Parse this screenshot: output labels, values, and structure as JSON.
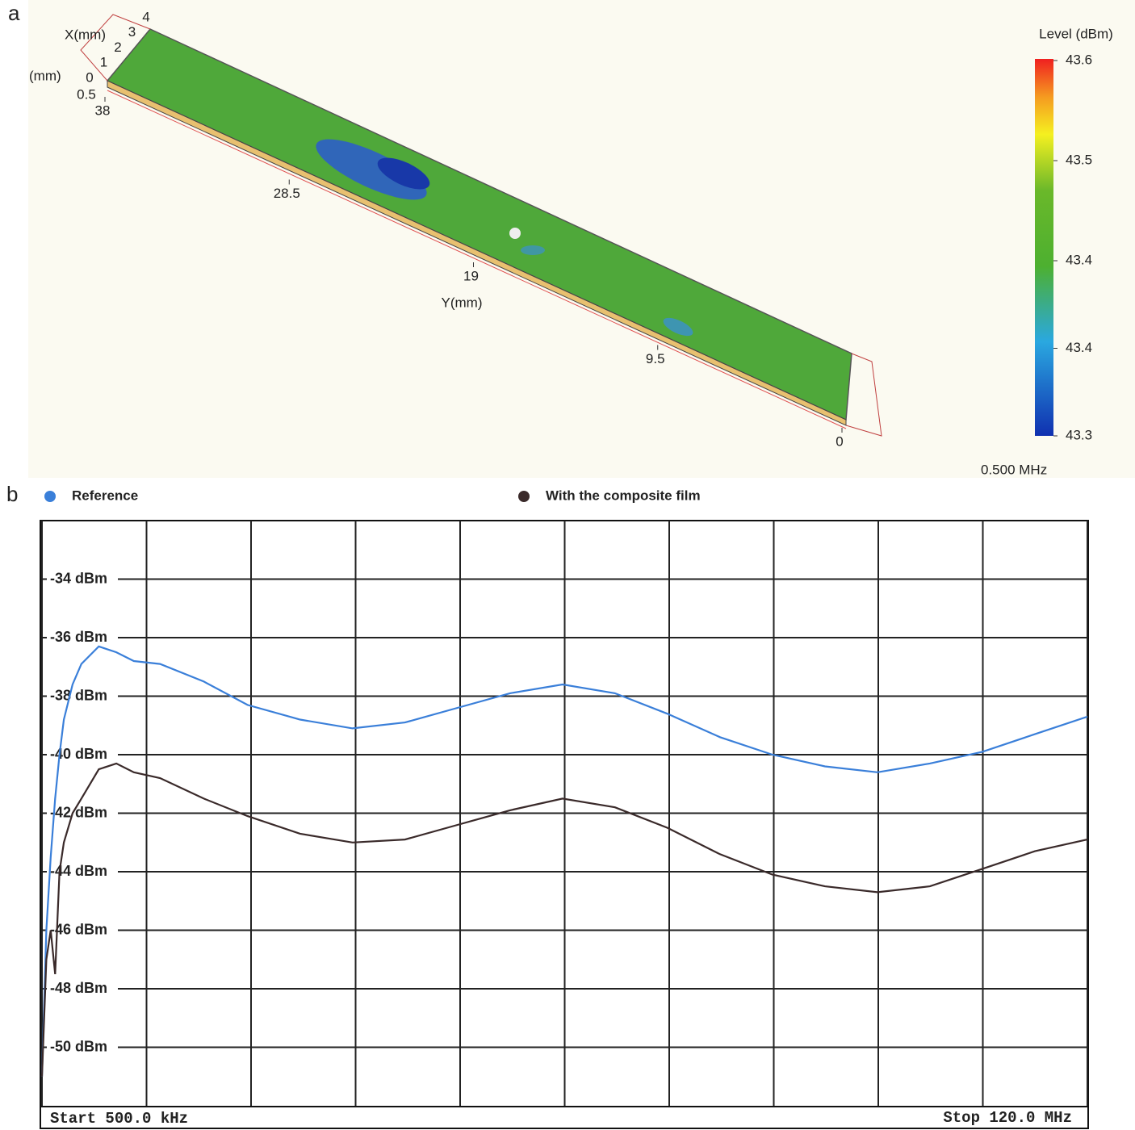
{
  "chart_data": [
    {
      "type": "surface3d",
      "panel_label": "a",
      "x_label": "X(mm)",
      "z_label": "(mm)",
      "y_label": "Y(mm)",
      "xticks": [
        4,
        3,
        2,
        1,
        0
      ],
      "xlim": [
        0,
        4
      ],
      "zticks": [
        0.5
      ],
      "yticks": [
        38,
        28.5,
        19,
        9.5,
        0
      ],
      "ylim": [
        0,
        38
      ],
      "colorbar_label": "Level (dBm)",
      "colorbar_lim": [
        43.3,
        43.6
      ],
      "colorbar_ticks": [
        43.6,
        {
          "value": 43.52,
          "label": "43.5"
        },
        {
          "value": 43.44,
          "label": "43.4"
        },
        {
          "value": 43.37,
          "label": "43.4"
        },
        43.3
      ],
      "frequency_label": "0.500 MHz"
    },
    {
      "type": "line",
      "panel_label": "b",
      "legend": "top",
      "start_label": "Start 500.0 kHz",
      "stop_label": "Stop 120.0 MHz",
      "x": [
        0.5,
        1,
        1.5,
        2,
        2.5,
        3,
        4,
        5,
        7,
        9,
        11,
        14,
        19,
        24,
        30,
        36,
        42,
        48,
        54,
        60,
        66,
        72,
        78,
        84,
        90,
        96,
        102,
        108,
        114,
        120
      ],
      "xlim": [
        0.5,
        120
      ],
      "xticks": [
        0.5,
        12.45,
        24.4,
        36.35,
        48.3,
        60.25,
        72.2,
        84.15,
        96.1,
        108.05,
        120
      ],
      "ylim": [
        -52,
        -32
      ],
      "yticks": [
        {
          "value": -34,
          "label": "-34 dBm"
        },
        {
          "value": -36,
          "label": "-36 dBm"
        },
        {
          "value": -38,
          "label": "-38 dBm"
        },
        {
          "value": -40,
          "label": "-40 dBm"
        },
        {
          "value": -42,
          "label": "-42 dBm"
        },
        {
          "value": -44,
          "label": "-44 dBm"
        },
        {
          "value": -46,
          "label": "-46 dBm"
        },
        {
          "value": -48,
          "label": "-48 dBm"
        },
        {
          "value": -50,
          "label": "-50 dBm"
        }
      ],
      "grid": true,
      "series": [
        {
          "name": "Reference",
          "color": "#3a7fd9",
          "values": [
            -51,
            -46,
            -43.5,
            -41.5,
            -40,
            -38.8,
            -37.6,
            -36.9,
            -36.3,
            -36.5,
            -36.8,
            -36.9,
            -37.5,
            -38.3,
            -38.8,
            -39.1,
            -38.9,
            -38.4,
            -37.9,
            -37.6,
            -37.9,
            -38.6,
            -39.4,
            -40.0,
            -40.4,
            -40.6,
            -40.3,
            -39.9,
            -39.3,
            -38.7
          ]
        },
        {
          "name": "With the composite film",
          "color": "#3a2a2a",
          "values": [
            -51,
            -47,
            -46,
            -47.5,
            -44,
            -43,
            -42,
            -41.5,
            -40.5,
            -40.3,
            -40.6,
            -40.8,
            -41.5,
            -42.1,
            -42.7,
            -43.0,
            -42.9,
            -42.4,
            -41.9,
            -41.5,
            -41.8,
            -42.5,
            -43.4,
            -44.1,
            -44.5,
            -44.7,
            -44.5,
            -43.9,
            -43.3,
            -42.9
          ]
        }
      ]
    }
  ]
}
